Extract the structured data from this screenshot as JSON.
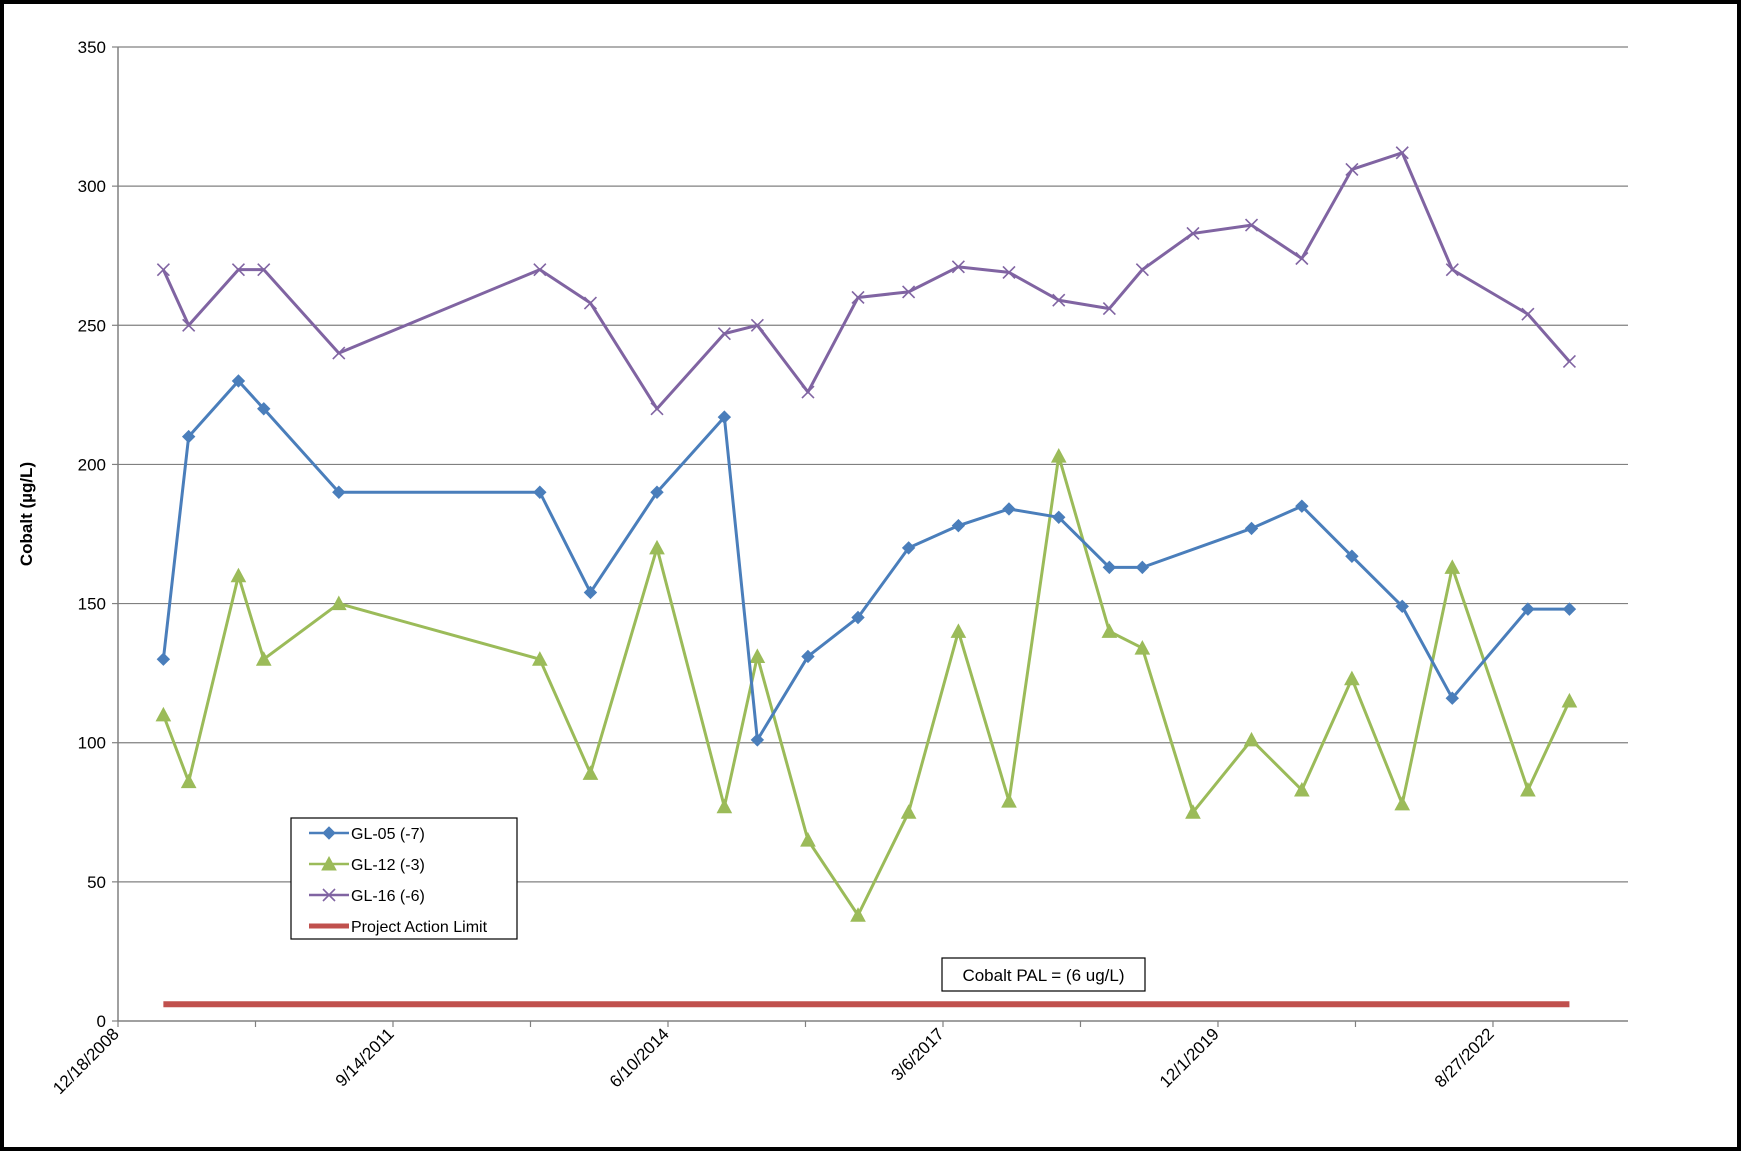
{
  "chart_data": {
    "type": "line",
    "title": "",
    "xlabel": "",
    "ylabel": "Cobalt (µg/L)",
    "ylim": [
      0,
      350
    ],
    "yticks": [
      "0",
      "50",
      "100",
      "150",
      "200",
      "250",
      "300",
      "350"
    ],
    "xlim": [
      "2008-12-18",
      "2023-12-31"
    ],
    "xtick_labels": [
      {
        "date": "2008-12-18",
        "label": "12/18/2008"
      },
      {
        "date": "2011-09-14",
        "label": "9/14/2011"
      },
      {
        "date": "2014-06-10",
        "label": "6/10/2014"
      },
      {
        "date": "2017-03-06",
        "label": "3/6/2017"
      },
      {
        "date": "2019-12-01",
        "label": "12/1/2019"
      },
      {
        "date": "2022-08-27",
        "label": "8/27/2022"
      }
    ],
    "grid": "horizontal",
    "legend_position": "lower-left",
    "series": [
      {
        "name": "GL-05 (-7)",
        "color": "#4a7ebb",
        "marker": "diamond",
        "x": [
          "2009-06-01",
          "2009-09-01",
          "2010-03-01",
          "2010-06-01",
          "2011-03-01",
          "2013-03-01",
          "2013-09-01",
          "2014-05-01",
          "2015-01-01",
          "2015-05-01",
          "2015-11-01",
          "2016-05-01",
          "2016-11-01",
          "2017-05-01",
          "2017-11-01",
          "2018-05-01",
          "2018-11-01",
          "2019-03-01",
          "2020-04-01",
          "2020-10-01",
          "2021-04-01",
          "2021-10-01",
          "2022-04-01",
          "2023-01-01",
          "2023-06-01"
        ],
        "y": [
          130,
          210,
          230,
          220,
          190,
          190,
          154,
          190,
          217,
          101,
          131,
          145,
          170,
          178,
          184,
          181,
          163,
          163,
          177,
          185,
          167,
          149,
          116,
          148,
          148
        ]
      },
      {
        "name": "GL-12 (-3)",
        "color": "#9bbb59",
        "marker": "triangle",
        "x": [
          "2009-06-01",
          "2009-09-01",
          "2010-03-01",
          "2010-06-01",
          "2011-03-01",
          "2013-03-01",
          "2013-09-01",
          "2014-05-01",
          "2015-01-01",
          "2015-05-01",
          "2015-11-01",
          "2016-05-01",
          "2016-11-01",
          "2017-05-01",
          "2017-11-01",
          "2018-05-01",
          "2018-11-01",
          "2019-03-01",
          "2019-09-01",
          "2020-04-01",
          "2020-10-01",
          "2021-04-01",
          "2021-10-01",
          "2022-04-01",
          "2023-01-01",
          "2023-06-01"
        ],
        "y": [
          110,
          86,
          160,
          130,
          150,
          130,
          89,
          170,
          77,
          131,
          65,
          38,
          75,
          140,
          79,
          203,
          140,
          134,
          75,
          101,
          83,
          123,
          78,
          163,
          83,
          115
        ]
      },
      {
        "name": "GL-16 (-6)",
        "color": "#8064a2",
        "marker": "x",
        "x": [
          "2009-06-01",
          "2009-09-01",
          "2010-03-01",
          "2010-06-01",
          "2011-03-01",
          "2013-03-01",
          "2013-09-01",
          "2014-05-01",
          "2015-01-01",
          "2015-05-01",
          "2015-11-01",
          "2016-05-01",
          "2016-11-01",
          "2017-05-01",
          "2017-11-01",
          "2018-05-01",
          "2018-11-01",
          "2019-03-01",
          "2019-09-01",
          "2020-04-01",
          "2020-10-01",
          "2021-04-01",
          "2021-10-01",
          "2022-04-01",
          "2023-01-01",
          "2023-06-01"
        ],
        "y": [
          270,
          250,
          270,
          270,
          240,
          270,
          258,
          220,
          247,
          250,
          226,
          260,
          262,
          271,
          269,
          259,
          256,
          270,
          283,
          286,
          274,
          306,
          312,
          270,
          254,
          237
        ]
      },
      {
        "name": "Project Action Limit",
        "color": "#c0504d",
        "marker": "none",
        "x": [
          "2009-06-01",
          "2023-06-01"
        ],
        "y": [
          6,
          6
        ]
      }
    ],
    "annotations": [
      {
        "text": "Cobalt PAL = (6 ug/L)"
      }
    ]
  }
}
